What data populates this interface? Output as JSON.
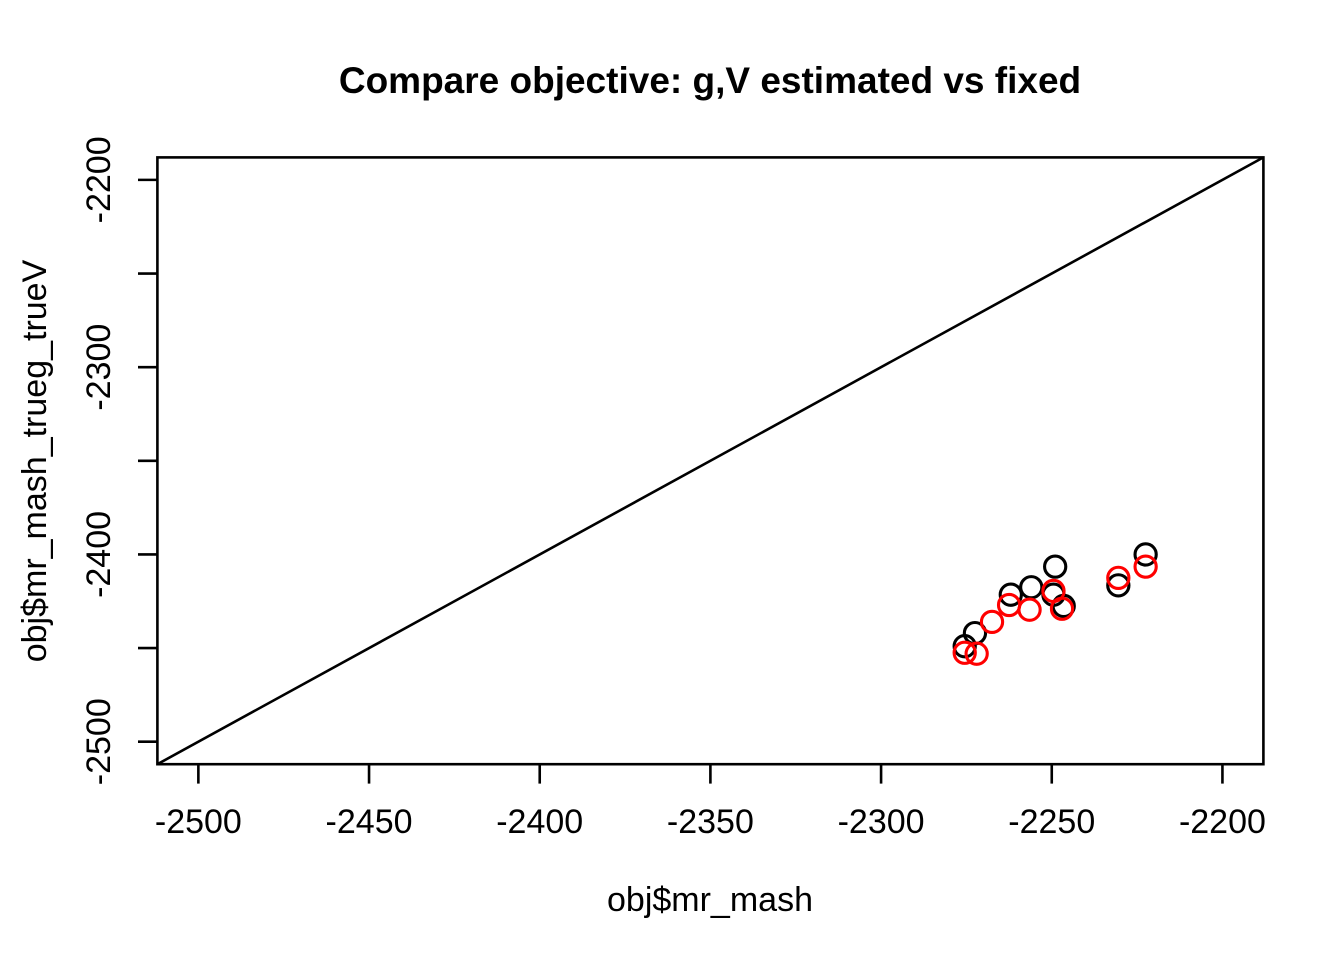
{
  "figure": {
    "background": "#ffffff",
    "foreground": "#000000"
  },
  "chart_data": {
    "type": "scatter",
    "title": "Compare objective: g,V estimated vs fixed",
    "xlabel": "obj$mr_mash",
    "ylabel": "obj$mr_mash_trueg_trueV",
    "grid": "off",
    "legend": "none",
    "axis_range": {
      "xlim": [
        -2512,
        -2188
      ],
      "ylim": [
        -2512,
        -2188
      ]
    },
    "x_axis": {
      "tick_values": [
        -2500,
        -2450,
        -2400,
        -2350,
        -2300,
        -2250,
        -2200
      ],
      "tick_labels": [
        "-2500",
        "-2450",
        "-2400",
        "-2350",
        "-2300",
        "-2250",
        "-2200"
      ]
    },
    "y_axis": {
      "tick_values": [
        -2500,
        -2450,
        -2400,
        -2350,
        -2300,
        -2250,
        -2200
      ],
      "tick_labels": [
        "-2500",
        "",
        "-2400",
        "",
        "-2300",
        "",
        "-2200"
      ]
    },
    "reference_line": {
      "type": "identity",
      "intercept": 0,
      "slope": 1,
      "color": "#000000"
    },
    "series": [
      {
        "name": "series-black",
        "marker": "open-circle",
        "color": "#000000",
        "points": [
          [
            -2275.5,
            -2449
          ],
          [
            -2272.5,
            -2442
          ],
          [
            -2262,
            -2421.5
          ],
          [
            -2256,
            -2417.5
          ],
          [
            -2249.5,
            -2421.5
          ],
          [
            -2249,
            -2406.5
          ],
          [
            -2246.5,
            -2427.5
          ],
          [
            -2230.5,
            -2416.5
          ],
          [
            -2222.5,
            -2400
          ]
        ]
      },
      {
        "name": "series-red",
        "marker": "open-circle",
        "color": "#FF0000",
        "points": [
          [
            -2275.5,
            -2452.5
          ],
          [
            -2272,
            -2453
          ],
          [
            -2267.5,
            -2436
          ],
          [
            -2262.5,
            -2427
          ],
          [
            -2256.5,
            -2429.5
          ],
          [
            -2249.5,
            -2419.5
          ],
          [
            -2247,
            -2429
          ],
          [
            -2230.5,
            -2412.5
          ],
          [
            -2222.5,
            -2406.5
          ]
        ]
      }
    ]
  }
}
